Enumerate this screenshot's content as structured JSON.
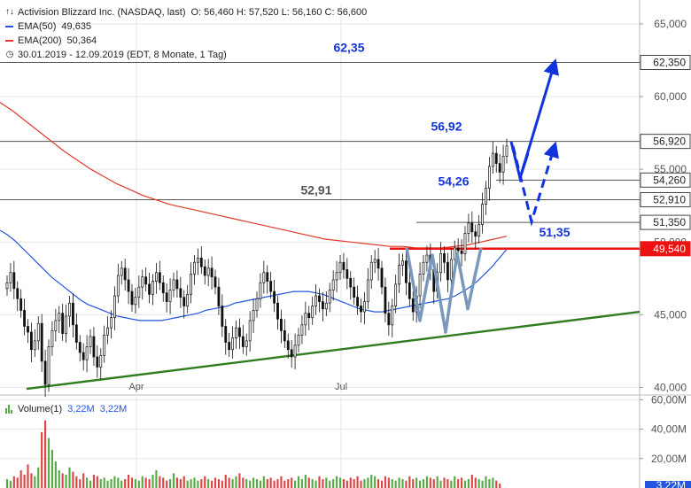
{
  "legend": {
    "title": "Activision Blizzard Inc. (NASDAQ, last)",
    "ohlc": "O: 56,460   H: 57,520   L: 56,160   C: 56,600",
    "ema50_label": "EMA(50)",
    "ema50_value": "49,635",
    "ema200_label": "EMA(200)",
    "ema200_value": "50,364",
    "range": "30.01.2019 - 12.09.2019   (EDT, 8 Monate, 1 Tag)"
  },
  "volume_legend": {
    "label": "Volume(1)",
    "value1": "3,22M",
    "value2": "3,22M"
  },
  "colors": {
    "ema50": "#2255dd",
    "ema200": "#e03a2a",
    "trend": "#2f7d1f",
    "support": "#ee1111",
    "annotation": "#1133dd",
    "wpattern": "#7a98bb",
    "candle": "#111111",
    "vol_up": "#55aa44",
    "vol_down": "#dd4444"
  },
  "chart_data": {
    "type": "candlestick",
    "price_axis": {
      "ticks": [
        "65,000",
        "60,000",
        "55,000",
        "50,000",
        "45,000",
        "40,000"
      ],
      "values": [
        65,
        60,
        55,
        50,
        45,
        40
      ],
      "ylim": [
        39.6,
        66.4
      ]
    },
    "x_axis": {
      "tick_labels": [
        "Apr",
        "Jul"
      ]
    },
    "horizontal_levels": [
      {
        "value": 62.35,
        "axis_label": "62,350",
        "chart_label": "62,35"
      },
      {
        "value": 56.92,
        "axis_label": "56,920",
        "chart_label": "56,92"
      },
      {
        "value": 54.26,
        "axis_label": "54,260",
        "chart_label": "54,26"
      },
      {
        "value": 52.91,
        "axis_label": "52,910",
        "chart_label": "52,91"
      },
      {
        "value": 51.35,
        "axis_label": "51,350",
        "chart_label": "51,35"
      },
      {
        "value": 49.54,
        "axis_label": "49,540",
        "chart_label": ""
      }
    ],
    "closes": [
      47.2,
      47.9,
      46.8,
      46.1,
      45.3,
      44.2,
      43.8,
      42.6,
      43.2,
      44.4,
      41.8,
      40.2,
      42.8,
      43.9,
      44.6,
      45.1,
      43.7,
      44.9,
      45.8,
      44.3,
      43.1,
      42.4,
      41.9,
      42.8,
      43.5,
      42.1,
      41.4,
      42.2,
      43.6,
      44.1,
      44.8,
      46.3,
      47.7,
      48.2,
      47.4,
      46.6,
      45.7,
      46.2,
      46.9,
      47.6,
      47.1,
      46.4,
      47.3,
      47.9,
      47.2,
      46.5,
      45.9,
      46.7,
      47.4,
      46.8,
      46.2,
      45.6,
      46.4,
      47.8,
      48.6,
      48.9,
      48.3,
      47.7,
      48.2,
      47.6,
      46.9,
      45.6,
      44.2,
      43.1,
      42.6,
      43.4,
      44.1,
      43.5,
      42.8,
      43.2,
      44.6,
      45.3,
      46.1,
      47.2,
      47.9,
      47.3,
      46.6,
      45.8,
      44.7,
      43.9,
      43.2,
      42.6,
      42.1,
      42.9,
      43.6,
      44.3,
      45.1,
      44.8,
      45.6,
      46.3,
      45.9,
      45.4,
      45.8,
      46.7,
      47.4,
      47.9,
      48.6,
      48.1,
      47.5,
      46.9,
      46.2,
      45.6,
      45.2,
      45.9,
      47.4,
      48.6,
      48.8,
      48.2,
      46.9,
      45.1,
      44.3,
      45.6,
      47.1,
      48.4,
      48.7,
      47.2,
      46.1,
      45.2,
      46.3,
      47.8,
      48.6,
      49.1,
      48.1,
      46.6,
      47.9,
      49.2,
      48.6,
      47.4,
      48.8,
      49.6,
      49.4,
      49.2,
      50.6,
      51.3,
      50.7,
      50.4,
      51.2,
      52.6,
      53.7,
      55.2,
      56.1,
      55.4,
      54.8,
      55.9,
      56.6
    ],
    "ema50": [
      50.8,
      50.5,
      50.1,
      49.6,
      49.1,
      48.6,
      48.1,
      47.6,
      47.2,
      46.8,
      46.4,
      46.0,
      45.7,
      45.5,
      45.3,
      45.1,
      44.9,
      44.8,
      44.7,
      44.6,
      44.6,
      44.6,
      44.6,
      44.7,
      44.8,
      44.9,
      45.0,
      45.1,
      45.3,
      45.4,
      45.5,
      45.6,
      45.8,
      45.9,
      46.0,
      46.1,
      46.2,
      46.3,
      46.4,
      46.5,
      46.6,
      46.6,
      46.6,
      46.5,
      46.4,
      46.2,
      46.0,
      45.8,
      45.6,
      45.4,
      45.3,
      45.2,
      45.2,
      45.3,
      45.4,
      45.5,
      45.6,
      45.7,
      45.8,
      45.9,
      46.0,
      46.1,
      46.3,
      46.6,
      46.9,
      47.3,
      47.8,
      48.3,
      48.9,
      49.5
    ],
    "ema200": [
      59.6,
      59.0,
      58.3,
      57.6,
      56.9,
      56.2,
      55.6,
      55.0,
      54.5,
      54.0,
      53.6,
      53.2,
      52.9,
      52.6,
      52.4,
      52.2,
      52.0,
      51.8,
      51.6,
      51.4,
      51.2,
      51.0,
      50.8,
      50.6,
      50.4,
      50.2,
      50.1,
      50.0,
      49.9,
      49.8,
      49.7,
      49.7,
      49.6,
      49.6,
      49.6,
      49.7,
      49.8,
      50.0,
      50.2,
      50.4
    ],
    "volume_axis": {
      "ticks": [
        "60,00M",
        "40,00M",
        "20,00M"
      ],
      "values": [
        60,
        40,
        20
      ],
      "ylim": [
        0,
        62
      ],
      "last": "3,22M"
    },
    "volumes": [
      6,
      5,
      8,
      7,
      12,
      9,
      16,
      10,
      8,
      14,
      38,
      46,
      34,
      26,
      18,
      12,
      10,
      9,
      14,
      11,
      8,
      6,
      10,
      7,
      5,
      9,
      8,
      6,
      7,
      5,
      6,
      8,
      7,
      5,
      6,
      9,
      7,
      6,
      5,
      8,
      7,
      6,
      9,
      12,
      8,
      7,
      5,
      6,
      10,
      7,
      6,
      8,
      5,
      6,
      7,
      5,
      6,
      8,
      6,
      5,
      7,
      6,
      5,
      9,
      7,
      6,
      8,
      10,
      7,
      6,
      5,
      7,
      6,
      5,
      8,
      6,
      7,
      5,
      6,
      8,
      5,
      6,
      7,
      5,
      8,
      6,
      9,
      7,
      6,
      5,
      8,
      6,
      7,
      5,
      6,
      8,
      7,
      6,
      5,
      7,
      6,
      8,
      5,
      6,
      7,
      9,
      8,
      6,
      5,
      8,
      7,
      6,
      5,
      7,
      6,
      5,
      8,
      6,
      7,
      5,
      6,
      8,
      7,
      6,
      8,
      5,
      7,
      6,
      5,
      8,
      6,
      7,
      5,
      6,
      9,
      7,
      6,
      5,
      8,
      6,
      7,
      5,
      3
    ]
  }
}
